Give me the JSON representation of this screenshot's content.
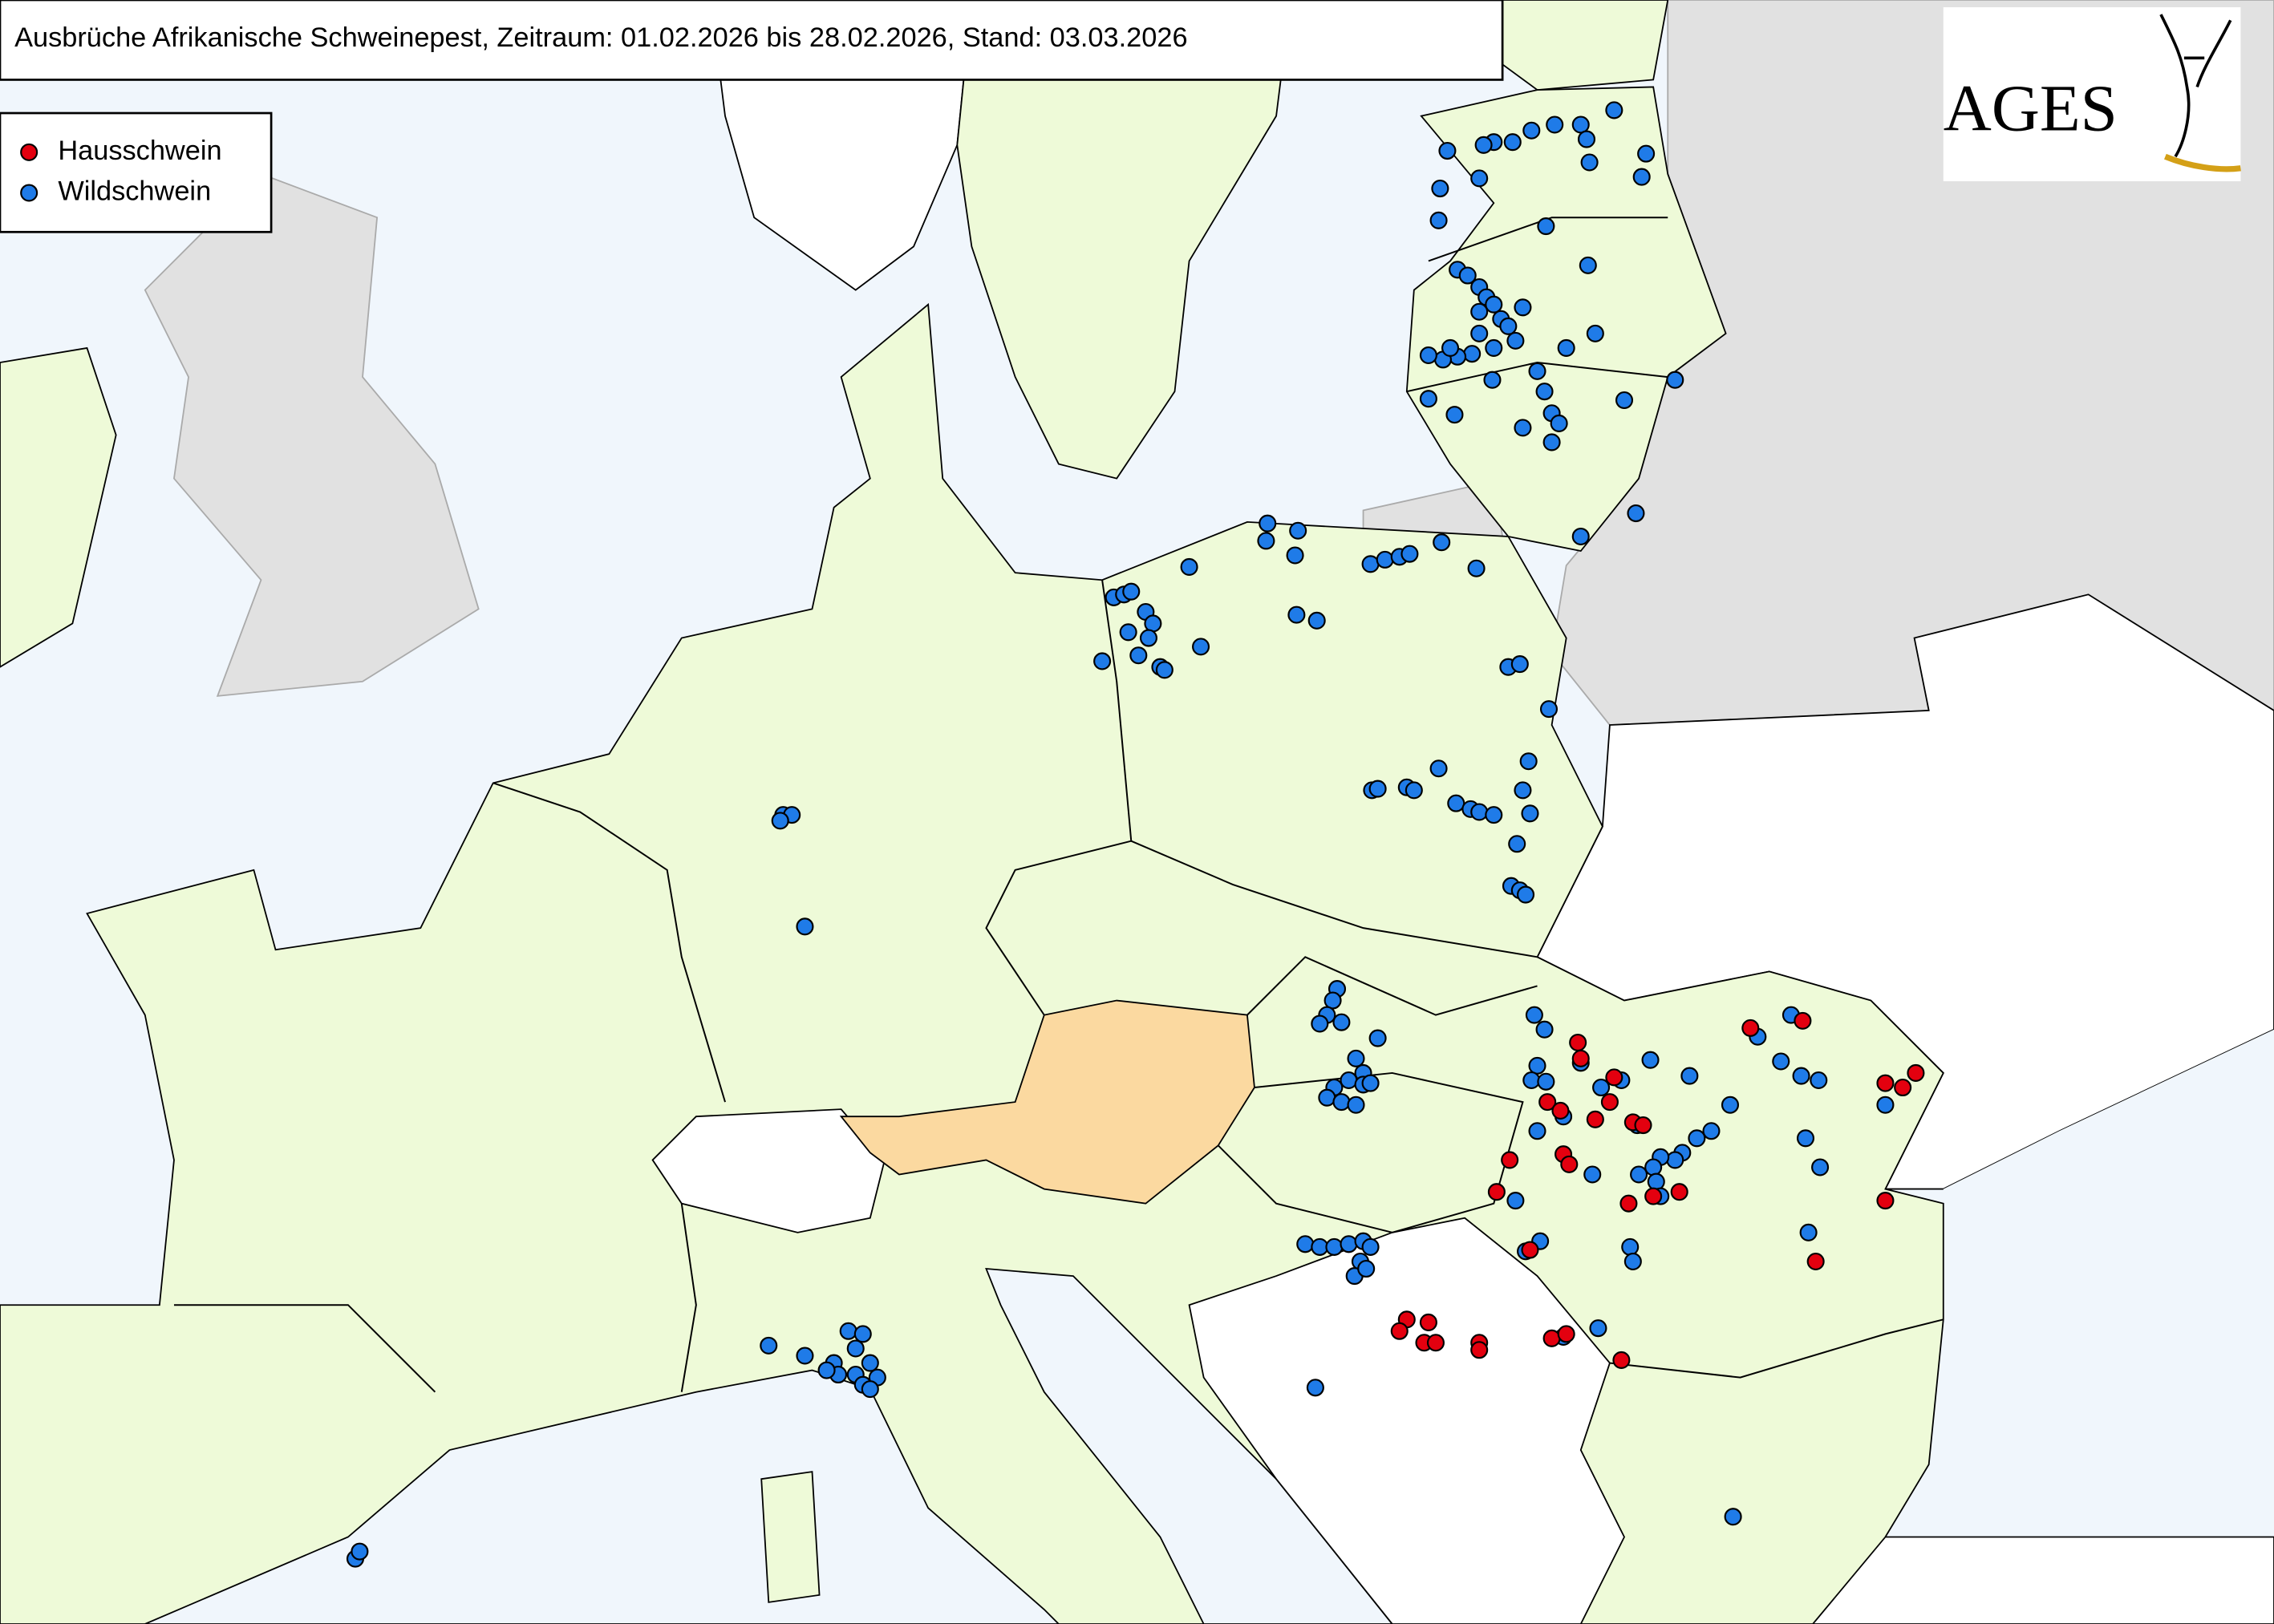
{
  "header": {
    "title": "Ausbrüche Afrikanische Schweinepest, Zeitraum: 01.02.2026 bis 28.02.2026, Stand: 03.03.2026"
  },
  "legend": {
    "items": [
      {
        "label": "Hausschwein",
        "color": "#e3000f"
      },
      {
        "label": "Wildschwein",
        "color": "#1f7be8"
      }
    ]
  },
  "logo": {
    "text": "AGES"
  }
}
